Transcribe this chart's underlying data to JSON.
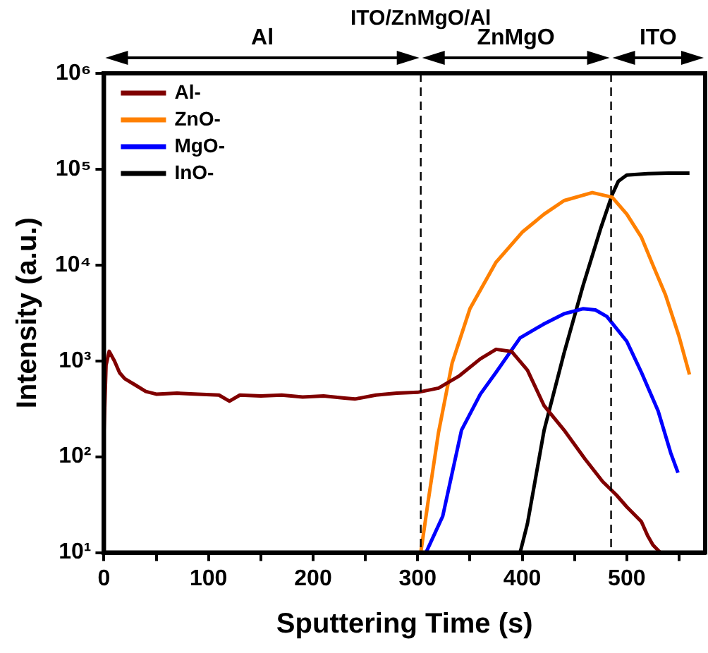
{
  "chart_data": {
    "type": "line",
    "title": "ITO/ZnMgO/Al",
    "xlabel": "Sputtering Time (s)",
    "ylabel": "Intensity (a.u.)",
    "log": "y",
    "legend": "top left",
    "grid": false,
    "marker": "none",
    "line_style": "solid",
    "xlim": [
      0,
      575
    ],
    "xticks": [
      0,
      {
        "value": 50,
        "label": null
      },
      100,
      {
        "value": 150,
        "label": null
      },
      200,
      {
        "value": 250,
        "label": null
      },
      300,
      {
        "value": 350,
        "label": null
      },
      400,
      {
        "value": 450,
        "label": null
      },
      500,
      {
        "value": 550,
        "label": null
      }
    ],
    "ylim": [
      10,
      1000000
    ],
    "yticks": [
      {
        "value": 10,
        "label": "10¹"
      },
      {
        "value": 100,
        "label": "10²"
      },
      {
        "value": 1000,
        "label": "10³"
      },
      {
        "value": 10000,
        "label": "10⁴"
      },
      {
        "value": 100000,
        "label": "10⁵"
      },
      {
        "value": 1000000,
        "label": "10⁶"
      }
    ],
    "ref_lines": [
      {
        "axis": "x",
        "value": 303,
        "line_style": "dashed",
        "color": "#000000"
      },
      {
        "axis": "x",
        "value": 485,
        "line_style": "dashed",
        "color": "#000000"
      }
    ],
    "annotations": [
      "Al",
      "ZnMgO",
      "ITO"
    ],
    "series": [
      {
        "name": "Al-",
        "color": "#800000",
        "x": [
          0,
          2,
          5,
          10,
          15,
          20,
          30,
          40,
          50,
          70,
          90,
          110,
          120,
          130,
          150,
          170,
          190,
          210,
          230,
          240,
          260,
          280,
          300,
          320,
          340,
          360,
          375,
          390,
          405,
          421,
          440,
          460,
          477,
          490,
          500,
          514,
          520,
          525,
          532
        ],
        "values": [
          180,
          900,
          1260,
          1000,
          750,
          650,
          560,
          480,
          450,
          460,
          450,
          440,
          380,
          440,
          430,
          440,
          420,
          430,
          410,
          400,
          440,
          460,
          470,
          520,
          700,
          1050,
          1320,
          1250,
          800,
          340,
          190,
          95,
          55,
          40,
          30,
          21,
          15,
          12,
          10
        ]
      },
      {
        "name": "ZnO-",
        "color": "#ff8000",
        "x": [
          303,
          310,
          320,
          333,
          350,
          375,
          400,
          421,
          440,
          467,
          486,
          500,
          514,
          525,
          537,
          550,
          560
        ],
        "values": [
          10,
          34,
          180,
          950,
          3500,
          10700,
          22000,
          34000,
          47000,
          57000,
          51000,
          34000,
          19500,
          10000,
          4900,
          1800,
          720
        ]
      },
      {
        "name": "MgO-",
        "color": "#0000ff",
        "x": [
          308,
          324,
          342,
          360,
          375,
          398,
          420,
          440,
          458,
          470,
          481,
          500,
          514,
          530,
          542,
          549
        ],
        "values": [
          10,
          24,
          190,
          450,
          760,
          1740,
          2400,
          3100,
          3500,
          3400,
          2900,
          1600,
          760,
          300,
          110,
          68
        ]
      },
      {
        "name": "InO-",
        "color": "#000000",
        "x": [
          398,
          405,
          421,
          440,
          458,
          475,
          486,
          492,
          500,
          520,
          540,
          560
        ],
        "values": [
          10,
          20,
          190,
          1200,
          6000,
          24000,
          54000,
          75000,
          87000,
          90000,
          91000,
          91000
        ]
      }
    ]
  }
}
